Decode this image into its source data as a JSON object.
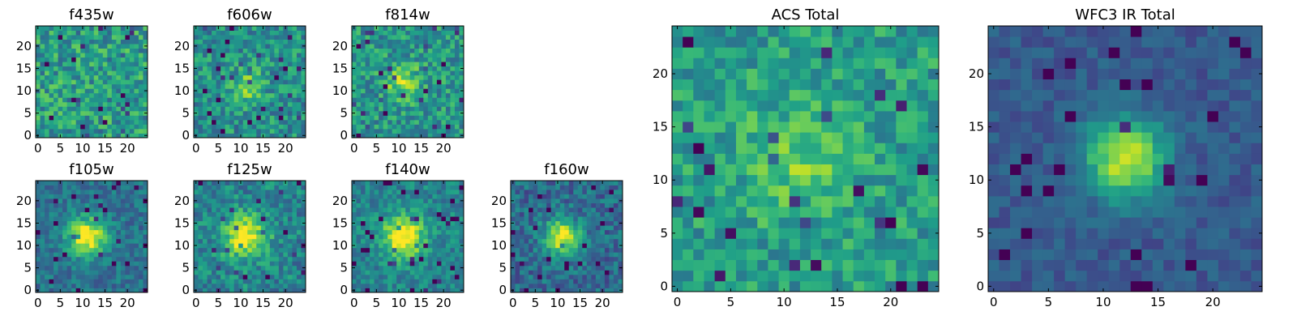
{
  "chart_data": [
    {
      "type": "heatmap",
      "title": "f435w",
      "xlabel": "",
      "ylabel": "",
      "xlim": [
        -0.5,
        24.5
      ],
      "ylim": [
        -0.5,
        24.5
      ],
      "x_ticks": [
        0,
        5,
        10,
        15,
        20
      ],
      "y_ticks": [
        0,
        5,
        10,
        15,
        20
      ],
      "source_center": null,
      "peak_value": 0.45,
      "colormap": "viridis"
    },
    {
      "type": "heatmap",
      "title": "f606w",
      "xlabel": "",
      "ylabel": "",
      "xlim": [
        -0.5,
        24.5
      ],
      "ylim": [
        -0.5,
        24.5
      ],
      "x_ticks": [
        0,
        5,
        10,
        15,
        20
      ],
      "y_ticks": [
        0,
        5,
        10,
        15,
        20
      ],
      "source_center": [
        11,
        11
      ],
      "peak_value": 0.6,
      "colormap": "viridis"
    },
    {
      "type": "heatmap",
      "title": "f814w",
      "xlabel": "",
      "ylabel": "",
      "xlim": [
        -0.5,
        24.5
      ],
      "ylim": [
        -0.5,
        24.5
      ],
      "x_ticks": [
        0,
        5,
        10,
        15,
        20
      ],
      "y_ticks": [
        0,
        5,
        10,
        15,
        20
      ],
      "source_center": [
        11,
        12
      ],
      "peak_value": 0.7,
      "colormap": "viridis"
    },
    {
      "type": "heatmap",
      "title": "f105w",
      "xlabel": "",
      "ylabel": "",
      "xlim": [
        -0.5,
        24.5
      ],
      "ylim": [
        -0.5,
        24.5
      ],
      "x_ticks": [
        0,
        5,
        10,
        15,
        20
      ],
      "y_ticks": [
        0,
        5,
        10,
        15,
        20
      ],
      "source_center": [
        11,
        12
      ],
      "peak_value": 1.0,
      "colormap": "viridis"
    },
    {
      "type": "heatmap",
      "title": "f125w",
      "xlabel": "",
      "ylabel": "",
      "xlim": [
        -0.5,
        24.5
      ],
      "ylim": [
        -0.5,
        24.5
      ],
      "x_ticks": [
        0,
        5,
        10,
        15,
        20
      ],
      "y_ticks": [
        0,
        5,
        10,
        15,
        20
      ],
      "source_center": [
        11,
        12
      ],
      "peak_value": 0.9,
      "colormap": "viridis"
    },
    {
      "type": "heatmap",
      "title": "f140w",
      "xlabel": "",
      "ylabel": "",
      "xlim": [
        -0.5,
        24.5
      ],
      "ylim": [
        -0.5,
        24.5
      ],
      "x_ticks": [
        0,
        5,
        10,
        15,
        20
      ],
      "y_ticks": [
        0,
        5,
        10,
        15,
        20
      ],
      "source_center": [
        11,
        12
      ],
      "peak_value": 1.0,
      "colormap": "viridis"
    },
    {
      "type": "heatmap",
      "title": "f160w",
      "xlabel": "",
      "ylabel": "",
      "xlim": [
        -0.5,
        24.5
      ],
      "ylim": [
        -0.5,
        24.5
      ],
      "x_ticks": [
        0,
        5,
        10,
        15,
        20
      ],
      "y_ticks": [
        0,
        5,
        10,
        15,
        20
      ],
      "source_center": [
        11,
        12
      ],
      "peak_value": 1.0,
      "colormap": "viridis"
    },
    {
      "type": "heatmap",
      "title": "ACS Total",
      "xlabel": "",
      "ylabel": "",
      "xlim": [
        -0.5,
        24.5
      ],
      "ylim": [
        -0.5,
        24.5
      ],
      "x_ticks": [
        0,
        5,
        10,
        15,
        20
      ],
      "y_ticks": [
        0,
        5,
        10,
        15,
        20
      ],
      "source_center": [
        11,
        12
      ],
      "peak_value": 0.55,
      "colormap": "viridis"
    },
    {
      "type": "heatmap",
      "title": "WFC3 IR Total",
      "xlabel": "",
      "ylabel": "",
      "xlim": [
        -0.5,
        24.5
      ],
      "ylim": [
        -0.5,
        24.5
      ],
      "x_ticks": [
        0,
        5,
        10,
        15,
        20
      ],
      "y_ticks": [
        0,
        5,
        10,
        15,
        20
      ],
      "source_center": [
        12,
        12
      ],
      "peak_value": 1.0,
      "colormap": "viridis"
    }
  ],
  "colors": {
    "viridis_stops": [
      "#440154",
      "#482878",
      "#3e4989",
      "#31688e",
      "#26828e",
      "#1f9e89",
      "#35b779",
      "#6ece58",
      "#b5de2b",
      "#fde725"
    ]
  }
}
